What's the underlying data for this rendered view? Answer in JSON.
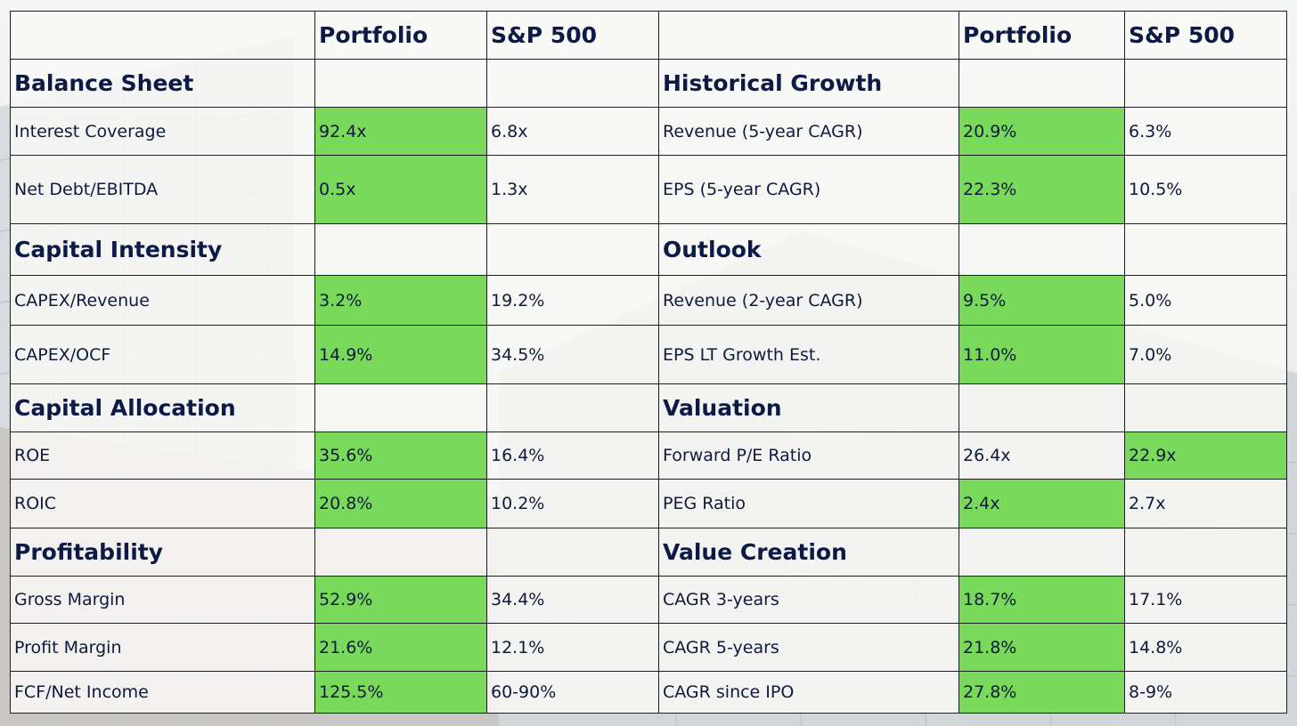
{
  "colors": {
    "highlight": "#79d95a",
    "heading_text": "#0c1a45",
    "body_text": "#0f1a3c",
    "grid_line": "#1e1e22"
  },
  "header": {
    "left": {
      "col1": "Portfolio",
      "col2": "S&P 500"
    },
    "right": {
      "col1": "Portfolio",
      "col2": "S&P 500"
    }
  },
  "rows": [
    {
      "type": "section",
      "left": {
        "label": "Balance Sheet"
      },
      "right": {
        "label": "Historical Growth"
      }
    },
    {
      "type": "data",
      "left": {
        "label": "Interest Coverage",
        "portfolio": "92.4x",
        "sp500": "6.8x",
        "highlight": "portfolio"
      },
      "right": {
        "label": "Revenue (5-year CAGR)",
        "portfolio": "20.9%",
        "sp500": "6.3%",
        "highlight": "portfolio"
      }
    },
    {
      "type": "data",
      "left": {
        "label": "Net Debt/EBITDA",
        "portfolio": "0.5x",
        "sp500": "1.3x",
        "highlight": "portfolio"
      },
      "right": {
        "label": "EPS (5-year CAGR)",
        "portfolio": "22.3%",
        "sp500": "10.5%",
        "highlight": "portfolio"
      }
    },
    {
      "type": "section",
      "left": {
        "label": "Capital Intensity"
      },
      "right": {
        "label": "Outlook"
      }
    },
    {
      "type": "data",
      "left": {
        "label": "CAPEX/Revenue",
        "portfolio": "3.2%",
        "sp500": "19.2%",
        "highlight": "portfolio"
      },
      "right": {
        "label": "Revenue (2-year CAGR)",
        "portfolio": "9.5%",
        "sp500": "5.0%",
        "highlight": "portfolio"
      }
    },
    {
      "type": "data",
      "left": {
        "label": "CAPEX/OCF",
        "portfolio": "14.9%",
        "sp500": "34.5%",
        "highlight": "portfolio"
      },
      "right": {
        "label": "EPS LT Growth Est.",
        "portfolio": "11.0%",
        "sp500": "7.0%",
        "highlight": "portfolio"
      }
    },
    {
      "type": "section",
      "left": {
        "label": "Capital Allocation"
      },
      "right": {
        "label": "Valuation"
      }
    },
    {
      "type": "data",
      "left": {
        "label": "ROE",
        "portfolio": "35.6%",
        "sp500": "16.4%",
        "highlight": "portfolio"
      },
      "right": {
        "label": "Forward P/E Ratio",
        "portfolio": "26.4x",
        "sp500": "22.9x",
        "highlight": "sp500"
      }
    },
    {
      "type": "data",
      "left": {
        "label": "ROIC",
        "portfolio": "20.8%",
        "sp500": "10.2%",
        "highlight": "portfolio"
      },
      "right": {
        "label": "PEG Ratio",
        "portfolio": "2.4x",
        "sp500": "2.7x",
        "highlight": "portfolio"
      }
    },
    {
      "type": "section",
      "left": {
        "label": "Profitability"
      },
      "right": {
        "label": "Value Creation"
      }
    },
    {
      "type": "data",
      "left": {
        "label": "Gross Margin",
        "portfolio": "52.9%",
        "sp500": "34.4%",
        "highlight": "portfolio"
      },
      "right": {
        "label": "CAGR 3-years",
        "portfolio": "18.7%",
        "sp500": "17.1%",
        "highlight": "portfolio"
      }
    },
    {
      "type": "data",
      "left": {
        "label": "Profit Margin",
        "portfolio": "21.6%",
        "sp500": "12.1%",
        "highlight": "portfolio"
      },
      "right": {
        "label": "CAGR 5-years",
        "portfolio": "21.8%",
        "sp500": "14.8%",
        "highlight": "portfolio"
      }
    },
    {
      "type": "data",
      "left": {
        "label": "FCF/Net Income",
        "portfolio": "125.5%",
        "sp500": "60-90%",
        "highlight": "portfolio"
      },
      "right": {
        "label": "CAGR since IPO",
        "portfolio": "27.8%",
        "sp500": "8-9%",
        "highlight": "portfolio"
      }
    }
  ]
}
